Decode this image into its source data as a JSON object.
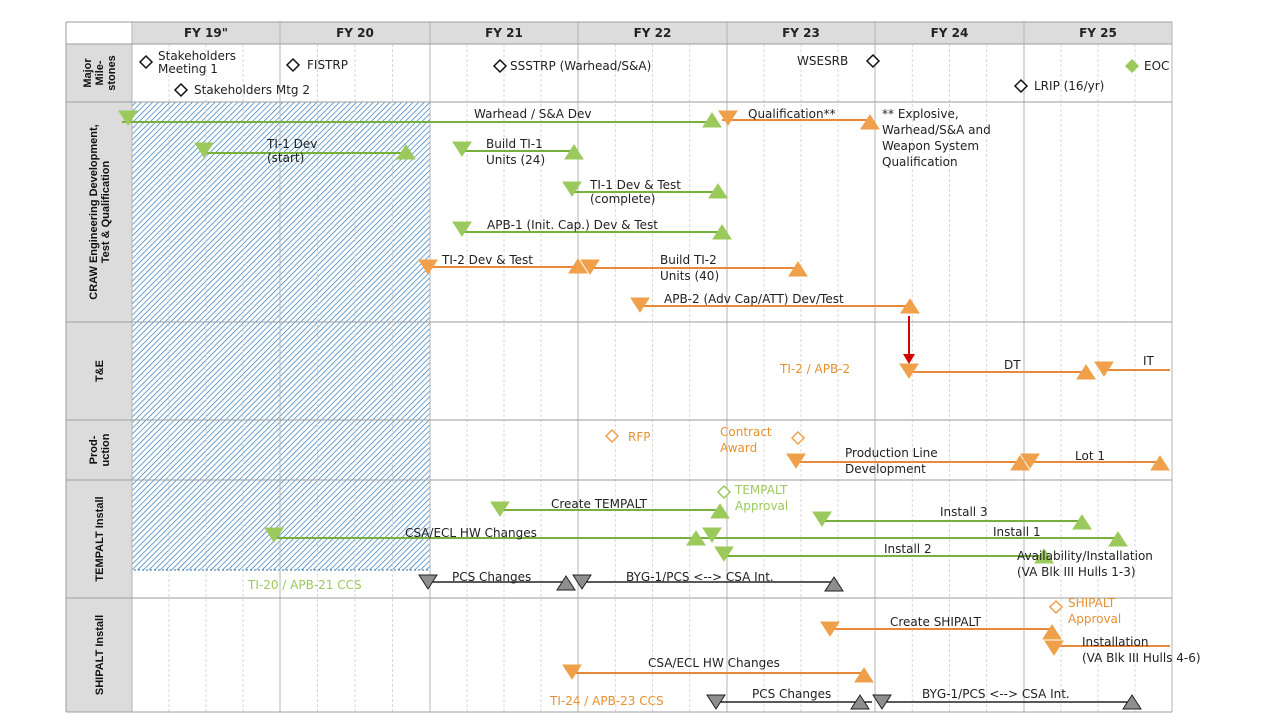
{
  "colors": {
    "green": "#9bc95c",
    "green_line": "#77b03a",
    "orange": "#f0a04b",
    "orange_line": "#e8893a",
    "orange_text": "#e89030",
    "gray": "#8e8e8e",
    "black": "#222222",
    "red": "#d40000",
    "header_bg": "#dcdcdc",
    "lane_bg": "#dcdcdc",
    "hatch": "#1f6fb5"
  },
  "years": [
    "FY 19\"",
    "FY 20",
    "FY 21",
    "FY 22",
    "FY 23",
    "FY 24",
    "FY 25"
  ],
  "lanes": [
    {
      "id": "milestones",
      "lines": [
        "Major",
        "Mile-",
        "stones"
      ]
    },
    {
      "id": "craw",
      "lines": [
        "CRAW Engineering Development,",
        "Test & Qualification"
      ]
    },
    {
      "id": "te",
      "lines": [
        "T&E"
      ]
    },
    {
      "id": "prod",
      "lines": [
        "Prod-",
        "uction"
      ]
    },
    {
      "id": "tempalt",
      "lines": [
        "TEMPALT Install"
      ]
    },
    {
      "id": "shipalt",
      "lines": [
        "SHIPALT Install"
      ]
    }
  ],
  "milestones": [
    {
      "lines": [
        "Stakeholders",
        "Meeting 1"
      ]
    },
    {
      "lines": [
        "Stakeholders Mtg 2"
      ]
    },
    {
      "lines": [
        "FISTRP"
      ]
    },
    {
      "lines": [
        "SSSTRP (Warhead/S&A)"
      ]
    },
    {
      "lines": [
        "WSESRB"
      ]
    },
    {
      "lines": [
        "LRIP (16/yr)"
      ]
    },
    {
      "lines": [
        "EOC"
      ]
    }
  ],
  "activities": [
    {
      "lines": [
        "Warhead / S&A Dev"
      ]
    },
    {
      "lines": [
        "Qualification**"
      ]
    },
    {
      "lines": [
        "** Explosive,",
        "Warhead/S&A and",
        "Weapon System",
        "Qualification"
      ]
    },
    {
      "lines": [
        "TI-1 Dev",
        "(start)"
      ]
    },
    {
      "lines": [
        "Build TI-1",
        "Units (24)"
      ]
    },
    {
      "lines": [
        "TI-1 Dev & Test",
        "(complete)"
      ]
    },
    {
      "lines": [
        "APB-1 (Init. Cap.) Dev & Test"
      ]
    },
    {
      "lines": [
        "TI-2  Dev & Test"
      ]
    },
    {
      "lines": [
        "Build TI-2",
        "Units (40)"
      ]
    },
    {
      "lines": [
        "APB-2 (Adv Cap/ATT) Dev/Test"
      ]
    },
    {
      "lines": [
        "TI-2 / APB-2"
      ]
    },
    {
      "lines": [
        "DT"
      ]
    },
    {
      "lines": [
        "IT"
      ]
    },
    {
      "lines": [
        "RFP"
      ]
    },
    {
      "lines": [
        "Contract",
        "Award"
      ]
    },
    {
      "lines": [
        "Production Line",
        "Development"
      ]
    },
    {
      "lines": [
        "Lot 1"
      ]
    },
    {
      "lines": [
        "Create TEMPALT"
      ]
    },
    {
      "lines": [
        "TEMPALT",
        "Approval"
      ]
    },
    {
      "lines": [
        "Install 3"
      ]
    },
    {
      "lines": [
        "CSA/ECL HW Changes"
      ]
    },
    {
      "lines": [
        "Install 1"
      ]
    },
    {
      "lines": [
        "Install 2"
      ]
    },
    {
      "lines": [
        "Availability/Installation",
        "(VA Blk III Hulls 1-3)"
      ]
    },
    {
      "lines": [
        "TI-20 / APB-21 CCS"
      ]
    },
    {
      "lines": [
        "PCS Changes"
      ]
    },
    {
      "lines": [
        "BYG-1/PCS <--> CSA Int."
      ]
    },
    {
      "lines": [
        "Create SHIPALT"
      ]
    },
    {
      "lines": [
        "SHIPALT",
        "Approval"
      ]
    },
    {
      "lines": [
        "Installation",
        "(VA Blk III Hulls 4-6)"
      ]
    },
    {
      "lines": [
        "CSA/ECL HW Changes"
      ]
    },
    {
      "lines": [
        "TI-24 / APB-23 CCS"
      ]
    },
    {
      "lines": [
        "PCS Changes"
      ]
    },
    {
      "lines": [
        "BYG-1/PCS <--> CSA Int."
      ]
    }
  ]
}
